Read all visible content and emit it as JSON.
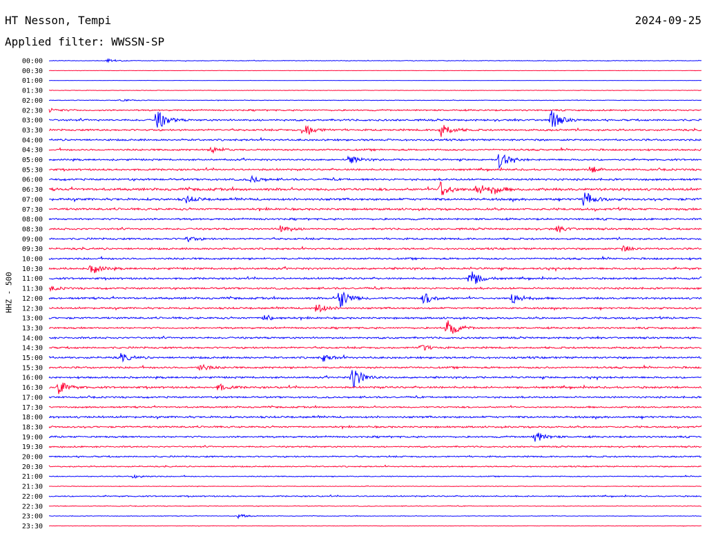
{
  "header": {
    "station": "HT Nesson, Tempi",
    "date": "2024-09-25",
    "filter": "Applied filter: WWSSN-SP"
  },
  "chart_data": {
    "type": "line",
    "title": "HT Nesson, Tempi",
    "ylabel": "HHZ - 500",
    "rows": [
      "00:00",
      "00:30",
      "01:00",
      "01:30",
      "02:00",
      "02:30",
      "03:00",
      "03:30",
      "04:00",
      "04:30",
      "05:00",
      "05:30",
      "06:00",
      "06:30",
      "07:00",
      "07:30",
      "08:00",
      "08:30",
      "09:00",
      "09:30",
      "10:00",
      "10:30",
      "11:00",
      "11:30",
      "12:00",
      "12:30",
      "13:00",
      "13:30",
      "14:00",
      "14:30",
      "15:00",
      "15:30",
      "16:00",
      "16:30",
      "17:00",
      "17:30",
      "18:00",
      "18:30",
      "19:00",
      "19:30",
      "20:00",
      "20:30",
      "21:00",
      "21:30",
      "22:00",
      "22:30",
      "23:00",
      "23:30"
    ],
    "colors": [
      "#0000ff",
      "#ff0033"
    ],
    "noise": [
      0.5,
      0.3,
      0.2,
      0.4,
      0.5,
      1.2,
      1.5,
      1.5,
      1.5,
      1.4,
      1.4,
      1.5,
      1.6,
      2.0,
      1.9,
      1.7,
      1.5,
      1.5,
      1.5,
      1.5,
      1.5,
      1.6,
      1.5,
      1.5,
      1.6,
      1.5,
      1.5,
      1.4,
      1.5,
      1.5,
      1.6,
      1.5,
      1.5,
      1.6,
      1.4,
      1.3,
      1.6,
      1.4,
      1.4,
      1.2,
      1.2,
      1.0,
      0.8,
      0.5,
      1.0,
      0.6,
      0.5,
      0.4
    ],
    "events": [
      {
        "row": 0,
        "t": 0.09,
        "a": 3
      },
      {
        "row": 4,
        "t": 0.11,
        "a": 2
      },
      {
        "row": 5,
        "t": 0.0,
        "a": 3
      },
      {
        "row": 6,
        "t": 0.165,
        "a": 16
      },
      {
        "row": 6,
        "t": 0.77,
        "a": 14
      },
      {
        "row": 7,
        "t": 0.39,
        "a": 12
      },
      {
        "row": 7,
        "t": 0.6,
        "a": 13
      },
      {
        "row": 9,
        "t": 0.25,
        "a": 5
      },
      {
        "row": 10,
        "t": 0.46,
        "a": 7
      },
      {
        "row": 10,
        "t": 0.69,
        "a": 12
      },
      {
        "row": 11,
        "t": 0.83,
        "a": 5
      },
      {
        "row": 12,
        "t": 0.31,
        "a": 5
      },
      {
        "row": 13,
        "t": 0.6,
        "a": 11
      },
      {
        "row": 13,
        "t": 0.655,
        "a": 10
      },
      {
        "row": 13,
        "t": 0.68,
        "a": 6
      },
      {
        "row": 14,
        "t": 0.82,
        "a": 12
      },
      {
        "row": 14,
        "t": 0.21,
        "a": 5
      },
      {
        "row": 17,
        "t": 0.355,
        "a": 7
      },
      {
        "row": 17,
        "t": 0.78,
        "a": 5
      },
      {
        "row": 18,
        "t": 0.21,
        "a": 4
      },
      {
        "row": 19,
        "t": 0.88,
        "a": 5
      },
      {
        "row": 21,
        "t": 0.065,
        "a": 8
      },
      {
        "row": 22,
        "t": 0.645,
        "a": 14
      },
      {
        "row": 23,
        "t": 0.0,
        "a": 3
      },
      {
        "row": 24,
        "t": 0.445,
        "a": 16
      },
      {
        "row": 24,
        "t": 0.575,
        "a": 9
      },
      {
        "row": 24,
        "t": 0.71,
        "a": 9
      },
      {
        "row": 25,
        "t": 0.41,
        "a": 8
      },
      {
        "row": 26,
        "t": 0.33,
        "a": 5
      },
      {
        "row": 27,
        "t": 0.61,
        "a": 16
      },
      {
        "row": 29,
        "t": 0.57,
        "a": 5
      },
      {
        "row": 30,
        "t": 0.11,
        "a": 6
      },
      {
        "row": 30,
        "t": 0.42,
        "a": 5
      },
      {
        "row": 31,
        "t": 0.23,
        "a": 6
      },
      {
        "row": 32,
        "t": 0.465,
        "a": 18
      },
      {
        "row": 33,
        "t": 0.015,
        "a": 10
      },
      {
        "row": 33,
        "t": 0.26,
        "a": 5
      },
      {
        "row": 38,
        "t": 0.745,
        "a": 9
      },
      {
        "row": 42,
        "t": 0.13,
        "a": 3
      },
      {
        "row": 46,
        "t": 0.29,
        "a": 3
      }
    ]
  }
}
